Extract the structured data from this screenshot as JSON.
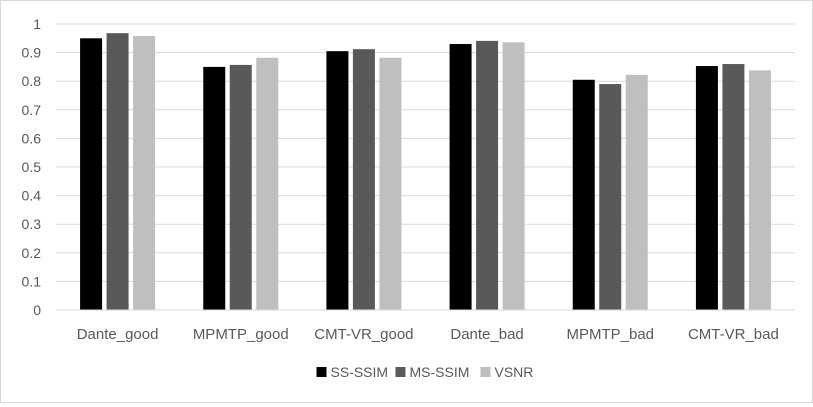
{
  "chart_data": {
    "type": "bar",
    "title": "",
    "xlabel": "",
    "ylabel": "",
    "categories": [
      "Dante_good",
      "MPMTP_good",
      "CMT-VR_good",
      "Dante_bad",
      "MPMTP_bad",
      "CMT-VR_bad"
    ],
    "series": [
      {
        "name": "SS-SSIM",
        "color": "#000000",
        "values": [
          0.95,
          0.85,
          0.905,
          0.93,
          0.805,
          0.853
        ]
      },
      {
        "name": "MS-SSIM",
        "color": "#595959",
        "values": [
          0.968,
          0.857,
          0.912,
          0.941,
          0.79,
          0.86
        ]
      },
      {
        "name": "VSNR",
        "color": "#bfbfbf",
        "values": [
          0.958,
          0.882,
          0.882,
          0.936,
          0.822,
          0.838
        ]
      }
    ],
    "ylim": [
      0,
      1
    ],
    "yticks": [
      "0",
      "0.1",
      "0.2",
      "0.3",
      "0.4",
      "0.5",
      "0.6",
      "0.7",
      "0.8",
      "0.9",
      "1"
    ],
    "grid": true,
    "legend_position": "bottom"
  }
}
